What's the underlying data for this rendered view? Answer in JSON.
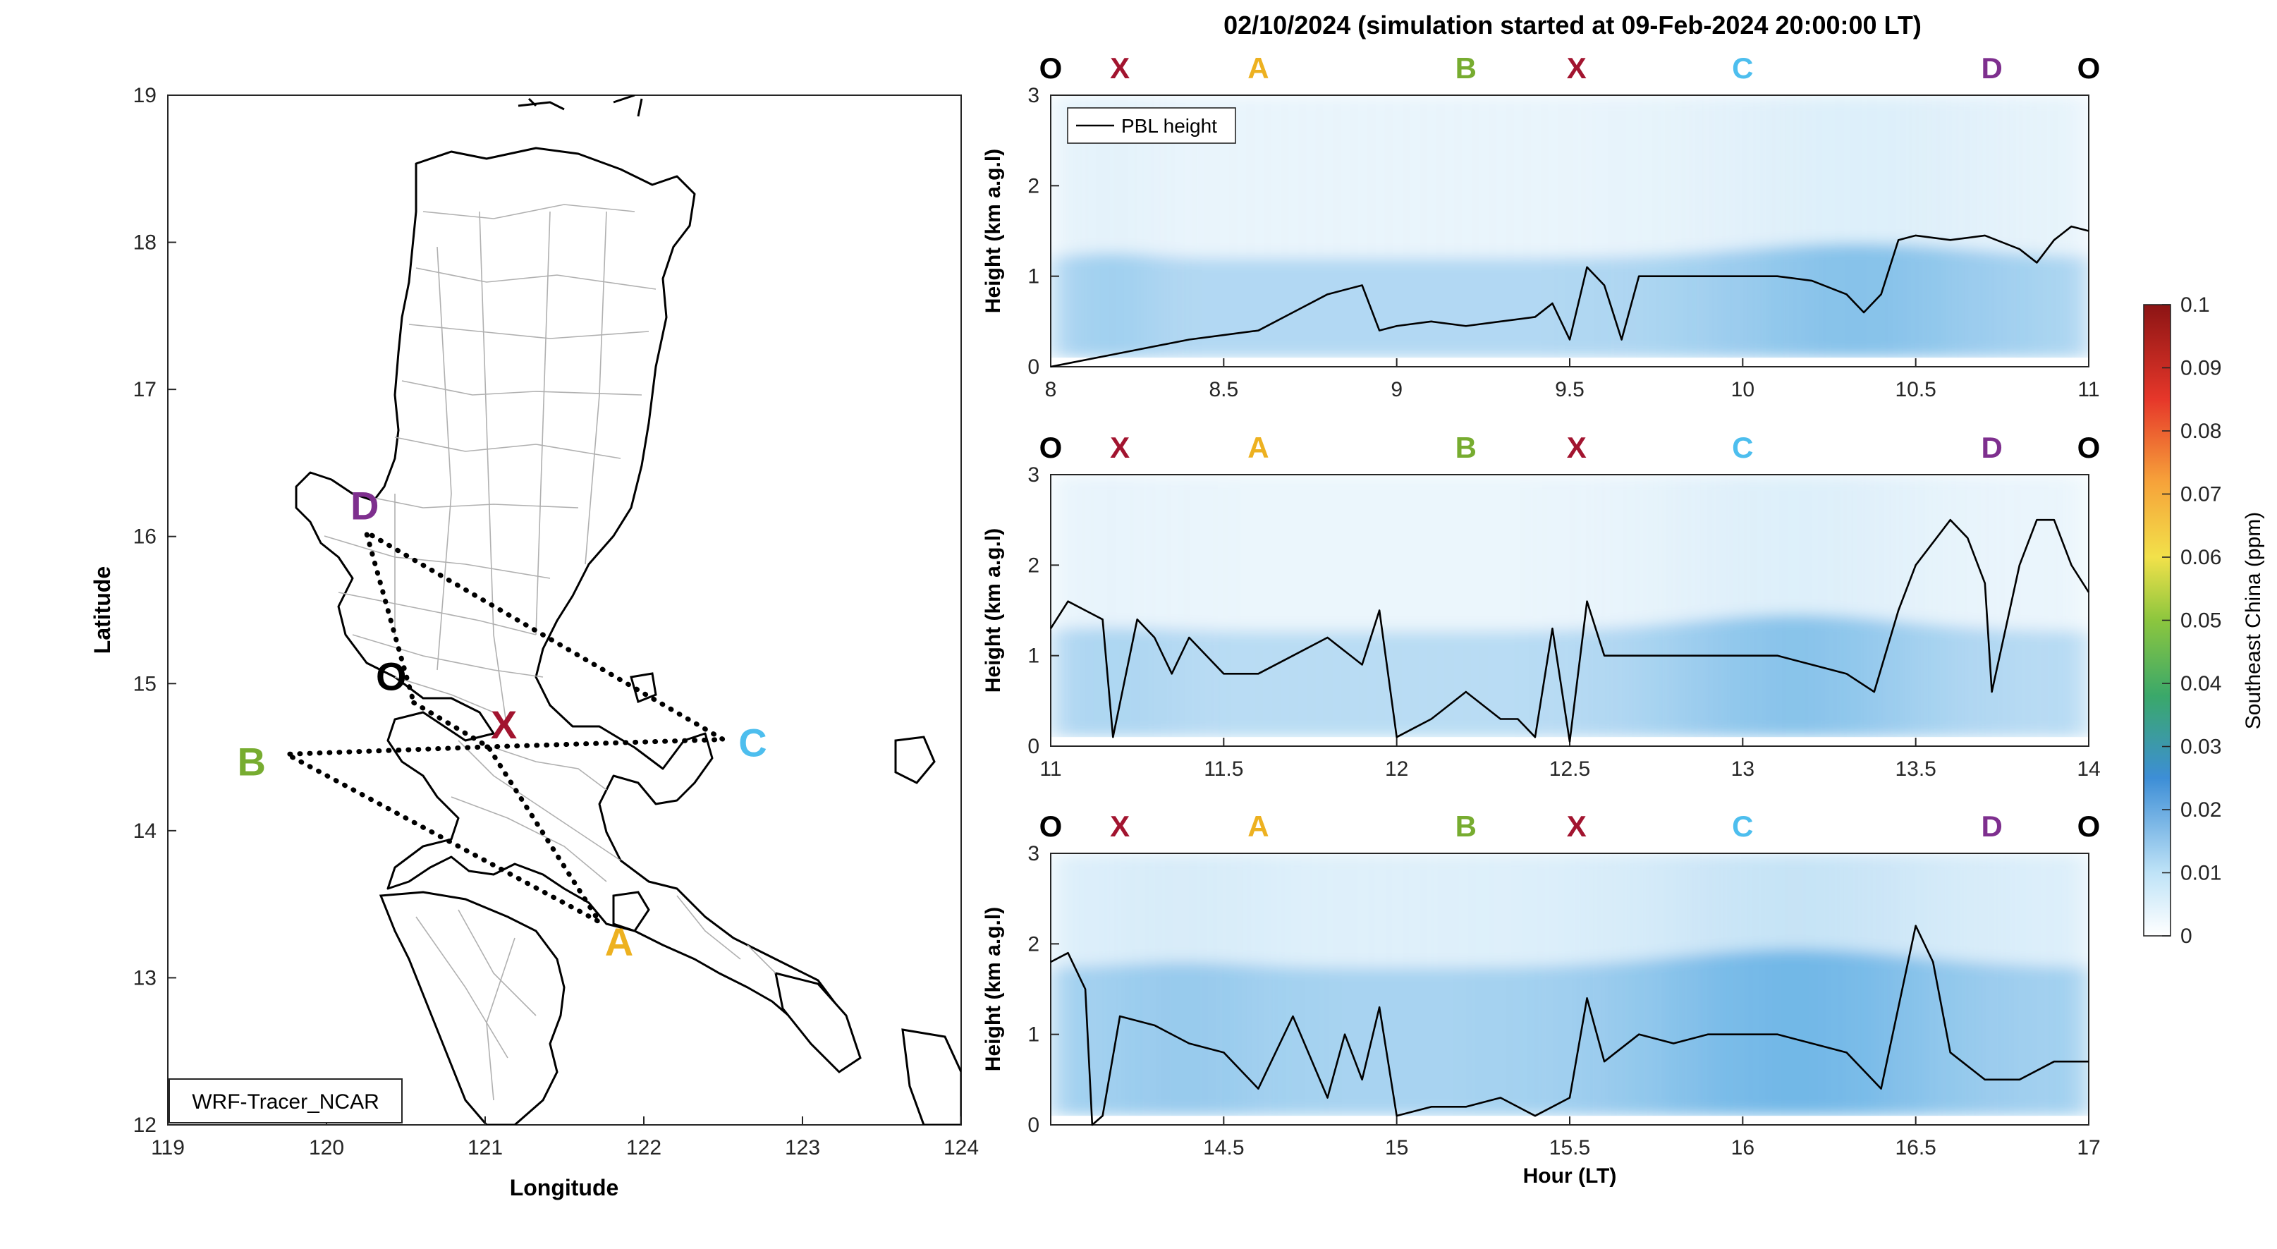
{
  "title": "02/10/2024 (simulation started at 09-Feb-2024 20:00:00 LT)",
  "map": {
    "xlabel": "Longitude",
    "ylabel": "Latitude",
    "xlim": [
      119,
      124
    ],
    "ylim": [
      12,
      19
    ],
    "xticks": [
      "119",
      "120",
      "121",
      "122",
      "123",
      "124"
    ],
    "yticks": [
      "12",
      "13",
      "14",
      "15",
      "16",
      "17",
      "18",
      "19"
    ],
    "model_label": "WRF-Tracer_NCAR",
    "points": [
      {
        "label": "O",
        "lon": 120.55,
        "lat": 14.87,
        "color": "#000000"
      },
      {
        "label": "X",
        "lon": 121.02,
        "lat": 14.57,
        "color": "#a2142f"
      },
      {
        "label": "A",
        "lon": 121.72,
        "lat": 13.38,
        "color": "#edb120"
      },
      {
        "label": "B",
        "lon": 119.75,
        "lat": 14.52,
        "color": "#77ac30"
      },
      {
        "label": "C",
        "lon": 122.5,
        "lat": 14.62,
        "color": "#4dbeee"
      },
      {
        "label": "D",
        "lon": 120.25,
        "lat": 16.03,
        "color": "#7e2f8e"
      }
    ],
    "route": [
      "O",
      "X",
      "A",
      "B",
      "X",
      "C",
      "D",
      "O"
    ]
  },
  "colorbar": {
    "label": "Southeast China (ppm)",
    "ticks": [
      "0",
      "0.01",
      "0.02",
      "0.03",
      "0.04",
      "0.05",
      "0.06",
      "0.07",
      "0.08",
      "0.09",
      "0.1"
    ],
    "min": 0,
    "max": 0.1
  },
  "route_labels": [
    {
      "label": "O",
      "color": "#000000"
    },
    {
      "label": "X",
      "color": "#a2142f"
    },
    {
      "label": "A",
      "color": "#edb120"
    },
    {
      "label": "B",
      "color": "#77ac30"
    },
    {
      "label": "X",
      "color": "#a2142f"
    },
    {
      "label": "C",
      "color": "#4dbeee"
    },
    {
      "label": "D",
      "color": "#7e2f8e"
    },
    {
      "label": "O",
      "color": "#000000"
    }
  ],
  "chart_data": [
    {
      "type": "line",
      "ylabel": "Height (km a.g.l)",
      "xlabel": "",
      "xlim": [
        8,
        11
      ],
      "ylim": [
        0,
        3
      ],
      "xticks": [
        "8",
        "8.5",
        "9",
        "9.5",
        "10",
        "10.5",
        "11"
      ],
      "yticks": [
        "0",
        "1",
        "2",
        "3"
      ],
      "legend": "PBL height",
      "legend_location": "top-left",
      "route_hours": [
        8.0,
        8.2,
        8.6,
        9.2,
        9.52,
        10.0,
        10.72,
        11.0
      ],
      "series": [
        {
          "name": "PBL height",
          "x": [
            8.0,
            8.2,
            8.4,
            8.5,
            8.6,
            8.7,
            8.8,
            8.9,
            8.95,
            9.0,
            9.1,
            9.2,
            9.3,
            9.4,
            9.45,
            9.5,
            9.55,
            9.6,
            9.65,
            9.7,
            9.8,
            9.9,
            10.0,
            10.1,
            10.2,
            10.3,
            10.35,
            10.4,
            10.45,
            10.5,
            10.6,
            10.7,
            10.8,
            10.85,
            10.9,
            10.95,
            11.0
          ],
          "y": [
            0.0,
            0.15,
            0.3,
            0.35,
            0.4,
            0.6,
            0.8,
            0.9,
            0.4,
            0.45,
            0.5,
            0.45,
            0.5,
            0.55,
            0.7,
            0.3,
            1.1,
            0.9,
            0.3,
            1.0,
            1.0,
            1.0,
            1.0,
            1.0,
            0.95,
            0.8,
            0.6,
            0.8,
            1.4,
            1.45,
            1.4,
            1.45,
            1.3,
            1.15,
            1.4,
            1.55,
            1.5
          ]
        }
      ]
    },
    {
      "type": "line",
      "ylabel": "Height (km a.g.l)",
      "xlabel": "",
      "xlim": [
        11,
        14
      ],
      "ylim": [
        0,
        3
      ],
      "xticks": [
        "11",
        "11.5",
        "12",
        "12.5",
        "13",
        "13.5",
        "14"
      ],
      "yticks": [
        "0",
        "1",
        "2",
        "3"
      ],
      "route_hours": [
        11.0,
        11.2,
        11.6,
        12.2,
        12.52,
        13.0,
        13.72,
        14.0
      ],
      "series": [
        {
          "name": "PBL height",
          "x": [
            11.0,
            11.05,
            11.1,
            11.15,
            11.18,
            11.25,
            11.3,
            11.35,
            11.4,
            11.5,
            11.6,
            11.7,
            11.8,
            11.9,
            11.95,
            12.0,
            12.05,
            12.1,
            12.2,
            12.3,
            12.35,
            12.4,
            12.45,
            12.5,
            12.55,
            12.6,
            12.7,
            12.8,
            12.9,
            13.0,
            13.1,
            13.2,
            13.3,
            13.38,
            13.45,
            13.5,
            13.6,
            13.65,
            13.7,
            13.72,
            13.8,
            13.85,
            13.9,
            13.95,
            14.0
          ],
          "y": [
            1.3,
            1.6,
            1.5,
            1.4,
            0.1,
            1.4,
            1.2,
            0.8,
            1.2,
            0.8,
            0.8,
            1.0,
            1.2,
            0.9,
            1.5,
            0.1,
            0.2,
            0.3,
            0.6,
            0.3,
            0.3,
            0.1,
            1.3,
            0.05,
            1.6,
            1.0,
            1.0,
            1.0,
            1.0,
            1.0,
            1.0,
            0.9,
            0.8,
            0.6,
            1.5,
            2.0,
            2.5,
            2.3,
            1.8,
            0.6,
            2.0,
            2.5,
            2.5,
            2.0,
            1.7
          ]
        }
      ]
    },
    {
      "type": "line",
      "ylabel": "Height (km a.g.l)",
      "xlabel": "Hour (LT)",
      "xlim": [
        14,
        17
      ],
      "ylim": [
        0,
        3
      ],
      "xticks": [
        "14.5",
        "15",
        "15.5",
        "16",
        "16.5",
        "17"
      ],
      "yticks": [
        "0",
        "1",
        "2",
        "3"
      ],
      "route_hours": [
        14.0,
        14.2,
        14.6,
        15.2,
        15.52,
        16.0,
        16.72,
        17.0
      ],
      "series": [
        {
          "name": "PBL height",
          "x": [
            14.0,
            14.05,
            14.1,
            14.12,
            14.15,
            14.2,
            14.3,
            14.4,
            14.5,
            14.6,
            14.7,
            14.8,
            14.85,
            14.9,
            14.95,
            15.0,
            15.1,
            15.2,
            15.3,
            15.4,
            15.5,
            15.55,
            15.6,
            15.7,
            15.8,
            15.9,
            16.0,
            16.1,
            16.2,
            16.3,
            16.4,
            16.5,
            16.55,
            16.6,
            16.7,
            16.8,
            16.9,
            17.0
          ],
          "y": [
            1.8,
            1.9,
            1.5,
            0.0,
            0.1,
            1.2,
            1.1,
            0.9,
            0.8,
            0.4,
            1.2,
            0.3,
            1.0,
            0.5,
            1.3,
            0.1,
            0.2,
            0.2,
            0.3,
            0.1,
            0.3,
            1.4,
            0.7,
            1.0,
            0.9,
            1.0,
            1.0,
            1.0,
            0.9,
            0.8,
            0.4,
            2.2,
            1.8,
            0.8,
            0.5,
            0.5,
            0.7,
            0.7
          ]
        }
      ]
    }
  ]
}
